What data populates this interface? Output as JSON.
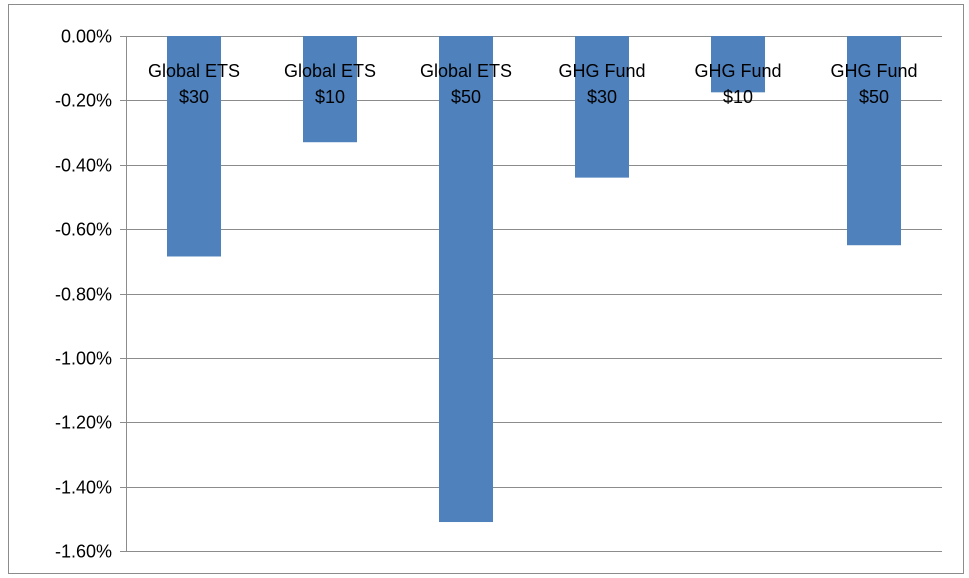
{
  "chart_data": {
    "type": "bar",
    "title": "",
    "xlabel": "",
    "ylabel": "",
    "categories": [
      [
        "Global ETS",
        "$30"
      ],
      [
        "Global ETS",
        "$10"
      ],
      [
        "Global ETS",
        "$50"
      ],
      [
        "GHG Fund",
        "$30"
      ],
      [
        "GHG Fund",
        "$10"
      ],
      [
        "GHG Fund",
        "$50"
      ]
    ],
    "series": [
      {
        "values": [
          -0.685,
          -0.33,
          -1.51,
          -0.44,
          -0.175,
          -0.65
        ],
        "color": "#4F81BD"
      }
    ],
    "ylim": [
      -1.6,
      0.0
    ],
    "yticks": [
      0.0,
      -0.2,
      -0.4,
      -0.6,
      -0.8,
      -1.0,
      -1.2,
      -1.4,
      -1.6
    ],
    "ytick_labels": [
      "0.00%",
      "-0.20%",
      "-0.40%",
      "-0.60%",
      "-0.80%",
      "-1.00%",
      "-1.20%",
      "-1.40%",
      "-1.60%"
    ],
    "grid": true,
    "legend": "none"
  }
}
